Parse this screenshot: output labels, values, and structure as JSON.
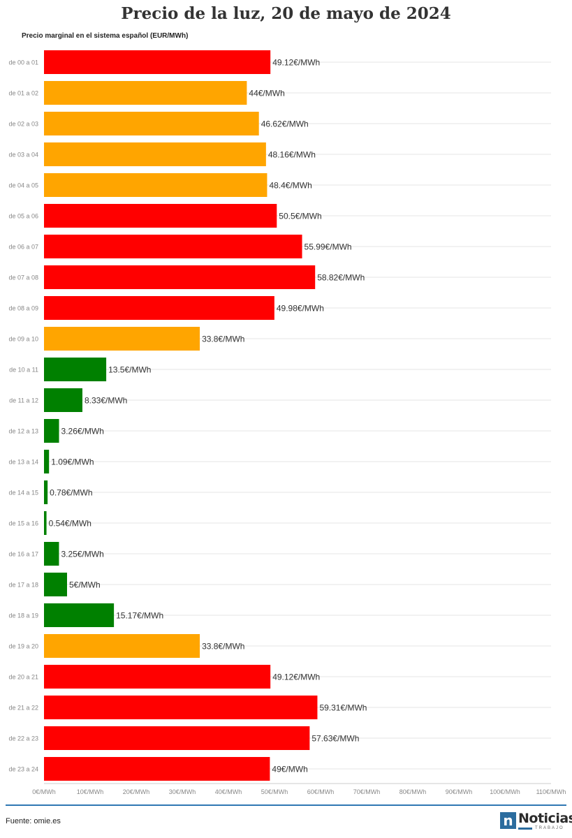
{
  "chart_data": {
    "type": "bar",
    "orientation": "horizontal",
    "title": "Precio de la luz, 20 de mayo de 2024",
    "subtitle": "Precio marginal en el sistema español (EUR/MWh)",
    "categories": [
      "de 00 a 01",
      "de 01 a 02",
      "de 02 a 03",
      "de 03 a 04",
      "de 04 a 05",
      "de 05 a 06",
      "de 06 a 07",
      "de 07 a 08",
      "de 08 a 09",
      "de 09 a 10",
      "de 10 a 11",
      "de 11 a 12",
      "de 12 a 13",
      "de 13 a 14",
      "de 14 a 15",
      "de 15 a 16",
      "de 16 a 17",
      "de 17 a 18",
      "de 18 a 19",
      "de 19 a 20",
      "de 20 a 21",
      "de 21 a 22",
      "de 22 a 23",
      "de 23 a 24"
    ],
    "values": [
      49.12,
      44,
      46.62,
      48.16,
      48.4,
      50.5,
      55.99,
      58.82,
      49.98,
      33.8,
      13.5,
      8.33,
      3.26,
      1.09,
      0.78,
      0.54,
      3.25,
      5,
      15.17,
      33.8,
      49.12,
      59.31,
      57.63,
      49
    ],
    "value_labels": [
      "49.12€/MWh",
      "44€/MWh",
      "46.62€/MWh",
      "48.16€/MWh",
      "48.4€/MWh",
      "50.5€/MWh",
      "55.99€/MWh",
      "58.82€/MWh",
      "49.98€/MWh",
      "33.8€/MWh",
      "13.5€/MWh",
      "8.33€/MWh",
      "3.26€/MWh",
      "1.09€/MWh",
      "0.78€/MWh",
      "0.54€/MWh",
      "3.25€/MWh",
      "5€/MWh",
      "15.17€/MWh",
      "33.8€/MWh",
      "49.12€/MWh",
      "59.31€/MWh",
      "57.63€/MWh",
      "49€/MWh"
    ],
    "bar_colors": [
      "#ff0000",
      "#ffa500",
      "#ffa500",
      "#ffa500",
      "#ffa500",
      "#ff0000",
      "#ff0000",
      "#ff0000",
      "#ff0000",
      "#ffa500",
      "#008000",
      "#008000",
      "#008000",
      "#008000",
      "#008000",
      "#008000",
      "#008000",
      "#008000",
      "#008000",
      "#ffa500",
      "#ff0000",
      "#ff0000",
      "#ff0000",
      "#ff0000"
    ],
    "xlim": [
      0,
      110
    ],
    "x_ticks": [
      0,
      10,
      20,
      30,
      40,
      50,
      60,
      70,
      80,
      90,
      100,
      110
    ],
    "x_tick_labels": [
      "0€/MWh",
      "10€/MWh",
      "20€/MWh",
      "30€/MWh",
      "40€/MWh",
      "50€/MWh",
      "60€/MWh",
      "70€/MWh",
      "80€/MWh",
      "90€/MWh",
      "100€/MWh",
      "110€/MWh"
    ],
    "grid": true
  },
  "footer": {
    "source": "Fuente: omie.es",
    "logo_text": "Noticias",
    "logo_sub": "TRABAJO",
    "logo_mark": "n",
    "accent_color": "#2f77b3"
  }
}
